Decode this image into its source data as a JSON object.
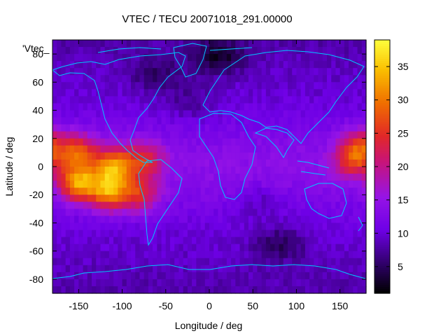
{
  "title": "VTEC / TECU 20071018_291.00000",
  "legend_key": "'Vtec_",
  "chart_data": {
    "type": "heatmap",
    "title": "VTEC / TECU 20071018_291.00000",
    "xlabel": "Longitude / deg",
    "ylabel": "Latitude / deg",
    "xlim": [
      -180,
      180
    ],
    "ylim": [
      -90,
      90
    ],
    "x_ticks": [
      -150,
      -100,
      -50,
      0,
      50,
      100,
      150
    ],
    "y_ticks": [
      -80,
      -60,
      -40,
      -20,
      0,
      20,
      40,
      60,
      80
    ],
    "colorbar": {
      "range": [
        1,
        39
      ],
      "ticks": [
        5,
        10,
        15,
        20,
        25,
        30,
        35
      ],
      "colormap": "black-purple-red-orange-yellow"
    },
    "hotspots": [
      {
        "lon": -150,
        "lat": 10,
        "value": 30
      },
      {
        "lon": -150,
        "lat": -12,
        "value": 38
      },
      {
        "lon": -110,
        "lat": 0,
        "value": 35
      },
      {
        "lon": -115,
        "lat": -18,
        "value": 36
      },
      {
        "lon": -75,
        "lat": 5,
        "value": 26
      },
      {
        "lon": -80,
        "lat": -20,
        "value": 27
      },
      {
        "lon": 165,
        "lat": 5,
        "value": 26
      },
      {
        "lon": 175,
        "lat": 15,
        "value": 24
      }
    ]
  },
  "colors": {
    "coastline": "#00c8ff",
    "background": "#ffffff"
  }
}
